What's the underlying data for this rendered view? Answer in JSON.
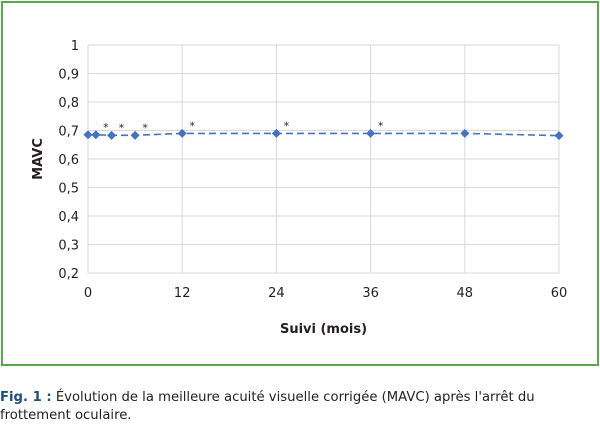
{
  "chart_data": {
    "type": "line",
    "title": "",
    "xlabel": "Suivi (mois)",
    "ylabel": "MAVC",
    "xlim": [
      0,
      60
    ],
    "ylim": [
      0.2,
      1
    ],
    "x_ticks": [
      0,
      12,
      24,
      36,
      48,
      60
    ],
    "x_tick_labels": [
      "0",
      "12",
      "24",
      "36",
      "48",
      "60"
    ],
    "y_ticks": [
      0.2,
      0.3,
      0.4,
      0.5,
      0.6,
      0.7,
      0.8,
      0.9,
      1
    ],
    "y_tick_labels": [
      "0,2",
      "0,3",
      "0,4",
      "0,5",
      "0,6",
      "0,7",
      "0,8",
      "0,9",
      "1"
    ],
    "grid": true,
    "legend": "none",
    "series": [
      {
        "x": [
          0,
          1,
          3,
          6,
          12,
          24,
          36,
          48,
          60
        ],
        "y": [
          0.685,
          0.685,
          0.683,
          0.683,
          0.69,
          0.69,
          0.69,
          0.69,
          0.682
        ],
        "color": "#4472c4",
        "line_style": "dashed",
        "marker": "diamond"
      }
    ],
    "annotations": [
      {
        "x": 1,
        "y": 0.685,
        "text": "*"
      },
      {
        "x": 3,
        "y": 0.683,
        "text": "*"
      },
      {
        "x": 6,
        "y": 0.683,
        "text": "*"
      },
      {
        "x": 12,
        "y": 0.69,
        "text": "*"
      },
      {
        "x": 24,
        "y": 0.69,
        "text": "*"
      },
      {
        "x": 36,
        "y": 0.69,
        "text": "*"
      }
    ],
    "frame_color": "#5aa84d",
    "grid_color": "#d9d9d9"
  },
  "caption": {
    "label": "Fig. 1 :",
    "text": "Évolution de la meilleure acuité visuelle corrigée (MAVC) après l'arrêt du frottement oculaire."
  }
}
